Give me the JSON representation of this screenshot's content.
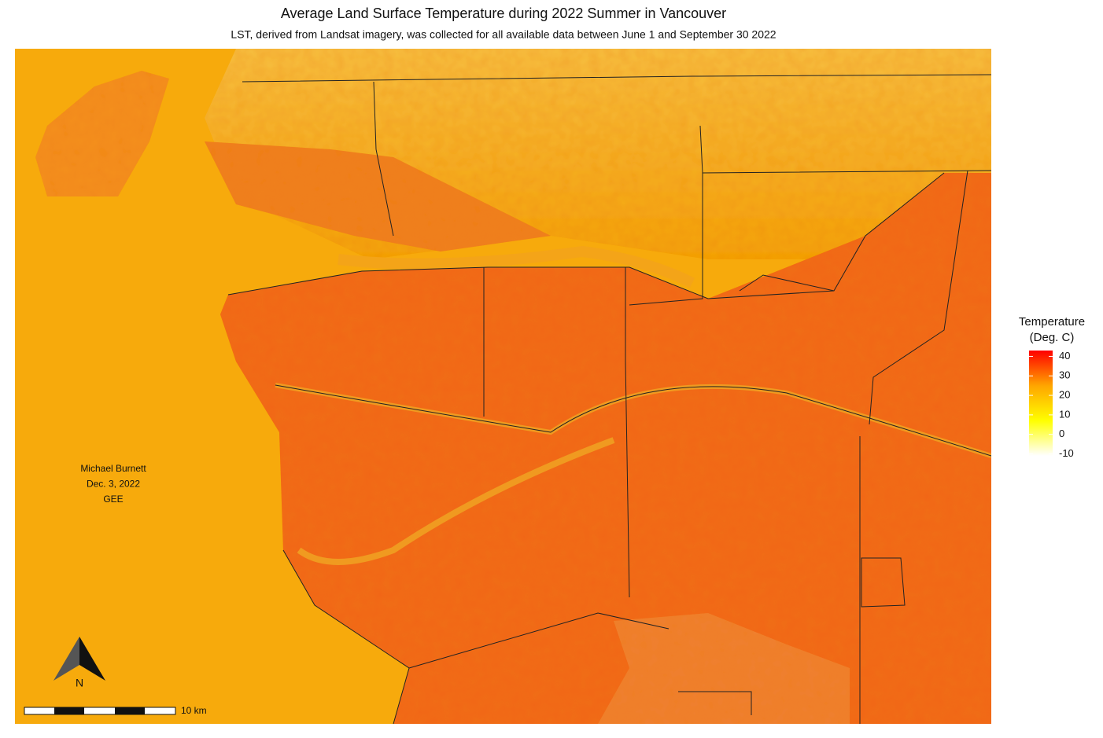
{
  "map": {
    "title": "Average Land Surface Temperature during 2022 Summer in Vancouver",
    "subtitle": "LST, derived from Landsat imagery, was collected for all available data between June 1 and September 30 2022",
    "credit": [
      "Michael Burnett",
      "Dec. 3, 2022",
      "GEE"
    ],
    "north": "N",
    "scale_label": "10 km",
    "legend": {
      "title": [
        "Temperature",
        "(Deg. C)"
      ],
      "lim": [
        -11,
        43
      ],
      "ticks": [
        40,
        30,
        20,
        10,
        0,
        -10
      ],
      "colors": [
        "#ffffff",
        "#ffff00",
        "#ffa500",
        "#ff0000"
      ]
    }
  }
}
